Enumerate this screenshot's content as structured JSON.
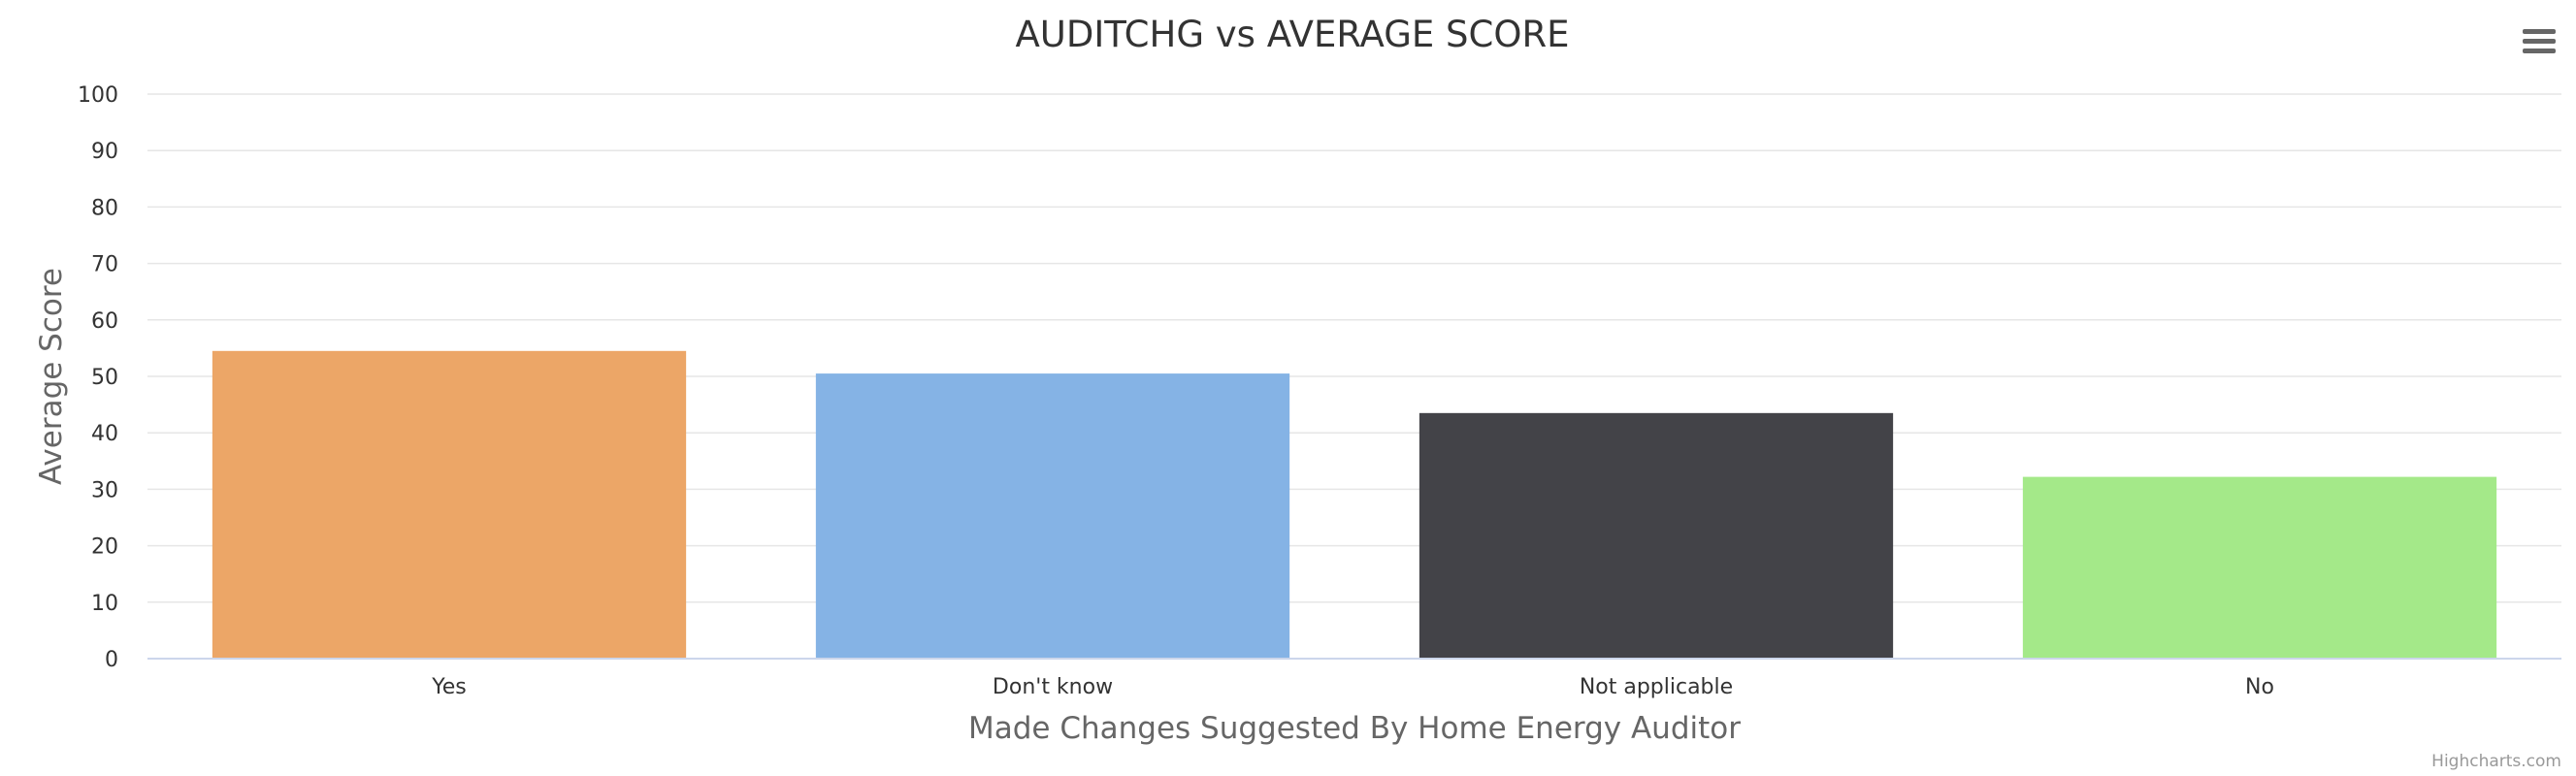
{
  "chart_data": {
    "type": "bar",
    "title": "AUDITCHG vs AVERAGE SCORE",
    "xlabel": "Made Changes Suggested By Home Energy Auditor",
    "ylabel": "Average Score",
    "categories": [
      "Yes",
      "Don't know",
      "Not applicable",
      "No"
    ],
    "values": [
      54.5,
      50.5,
      43.5,
      32.2
    ],
    "colors": [
      "#eca667",
      "#85b3e5",
      "#434348",
      "#a4e989"
    ],
    "ylim": [
      0,
      100
    ],
    "yticks": [
      0,
      10,
      20,
      30,
      40,
      50,
      60,
      70,
      80,
      90,
      100
    ],
    "grid": true,
    "legend": "none"
  },
  "credits": "Highcharts.com",
  "menu": {
    "icon": "hamburger-menu-icon"
  }
}
